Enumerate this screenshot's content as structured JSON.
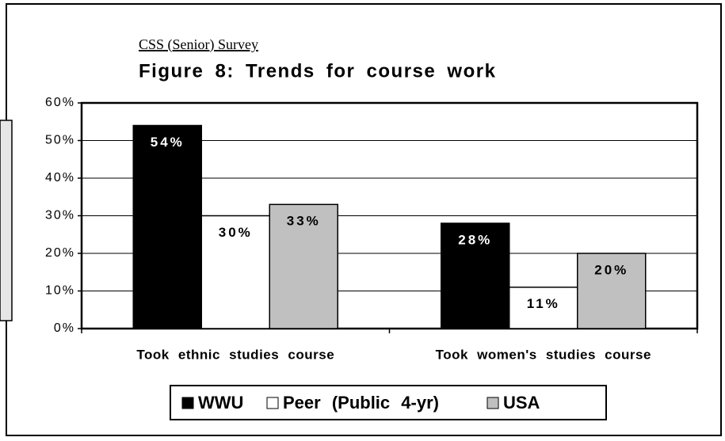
{
  "chart_data": {
    "type": "bar",
    "subtitle": "CSS (Senior) Survey",
    "title": "Figure 8: Trends for course work",
    "categories": [
      "Took ethnic studies course",
      "Took women's studies course"
    ],
    "series": [
      {
        "name": "WWU",
        "color": "#000000",
        "values": [
          54,
          28
        ],
        "value_labels": [
          "54%",
          "28%"
        ]
      },
      {
        "name": "Peer (Public 4-yr)",
        "color": "#ffffff",
        "values": [
          30,
          11
        ],
        "value_labels": [
          "30%",
          "11%"
        ]
      },
      {
        "name": "USA",
        "color": "#c0c0c0",
        "values": [
          33,
          20
        ],
        "value_labels": [
          "33%",
          "20%"
        ]
      }
    ],
    "ylim": [
      0,
      60
    ],
    "yticks": [
      {
        "value": 0,
        "label": "0%"
      },
      {
        "value": 10,
        "label": "10%"
      },
      {
        "value": 20,
        "label": "20%"
      },
      {
        "value": 30,
        "label": "30%"
      },
      {
        "value": 40,
        "label": "40%"
      },
      {
        "value": 50,
        "label": "50%"
      },
      {
        "value": 60,
        "label": "60%"
      }
    ],
    "grid": true,
    "legend": "bottom"
  }
}
